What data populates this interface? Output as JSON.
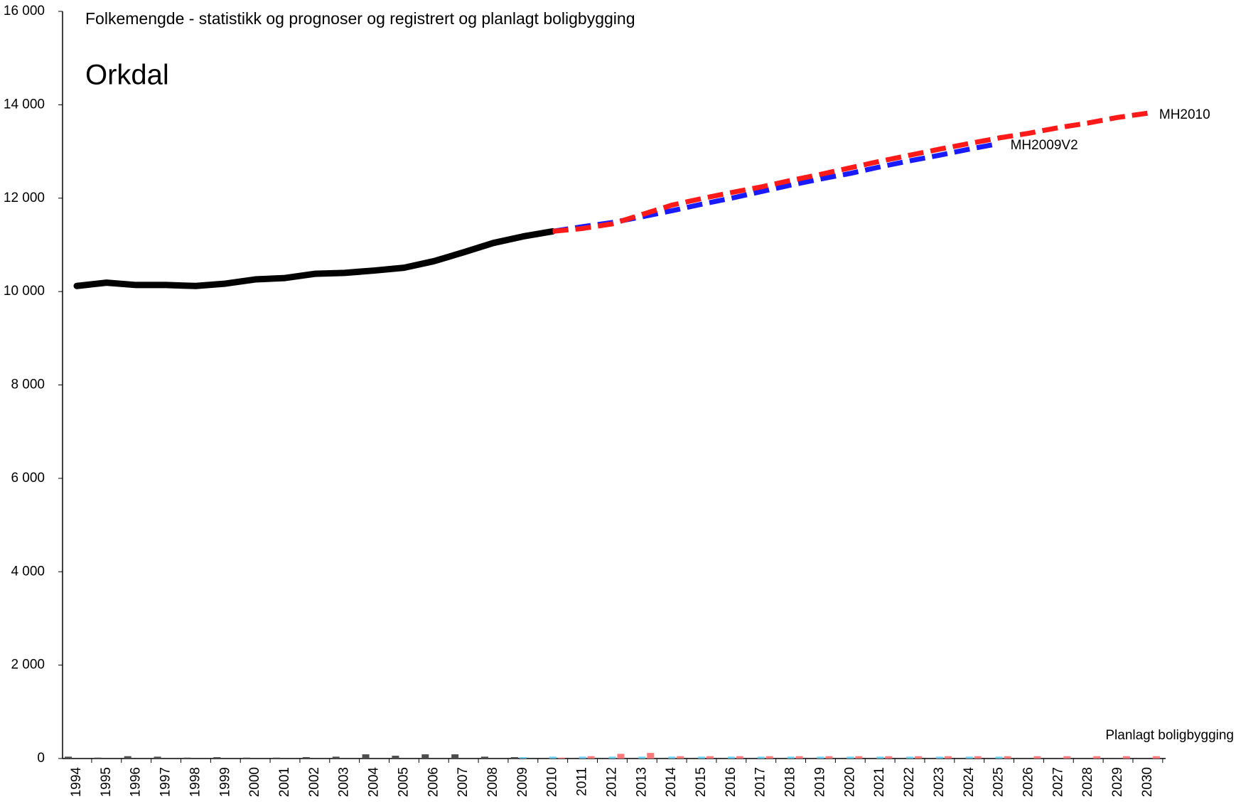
{
  "chart_data": {
    "type": "line",
    "title": "Folkemengde - statistikk og prognoser og registrert og planlagt boligbygging",
    "subtitle": "Orkdal",
    "annotation": "Planlagt boligbygging",
    "categories": [
      "1994",
      "1995",
      "1996",
      "1997",
      "1998",
      "1999",
      "2000",
      "2001",
      "2002",
      "2003",
      "2004",
      "2005",
      "2006",
      "2007",
      "2008",
      "2009",
      "2010",
      "2011",
      "2012",
      "2013",
      "2014",
      "2015",
      "2016",
      "2017",
      "2018",
      "2019",
      "2020",
      "2021",
      "2022",
      "2023",
      "2024",
      "2025",
      "2026",
      "2027",
      "2028",
      "2029",
      "2030"
    ],
    "ylim": [
      0,
      16000
    ],
    "yticks": [
      0,
      {
        "value": 2000,
        "label": "2 000"
      },
      {
        "value": 4000,
        "label": "4 000"
      },
      {
        "value": 6000,
        "label": "6 000"
      },
      {
        "value": 8000,
        "label": "8 000"
      },
      {
        "value": 10000,
        "label": "10 000"
      },
      {
        "value": 12000,
        "label": "12 000"
      },
      {
        "value": 14000,
        "label": "14 000"
      },
      {
        "value": 16000,
        "label": "16 000"
      }
    ],
    "series": [
      {
        "type": "line",
        "color": "#000000",
        "dashed": false,
        "values": [
          10120,
          10190,
          10140,
          10140,
          10120,
          10170,
          10260,
          10290,
          10380,
          10400,
          10450,
          10510,
          10650,
          10840,
          11040,
          11180,
          11290,
          null,
          null,
          null,
          null,
          null,
          null,
          null,
          null,
          null,
          null,
          null,
          null,
          null,
          null,
          null,
          null,
          null,
          null,
          null,
          null
        ]
      },
      {
        "type": "line",
        "name": "MH2009V2",
        "color": "#1a1aff",
        "dashed": true,
        "values": [
          null,
          null,
          null,
          null,
          null,
          null,
          null,
          null,
          null,
          null,
          null,
          null,
          null,
          null,
          null,
          null,
          11290,
          11390,
          11480,
          11600,
          11730,
          11870,
          12000,
          12140,
          12280,
          12410,
          12530,
          12670,
          12800,
          12920,
          13050,
          13170,
          null,
          null,
          null,
          null,
          null
        ]
      },
      {
        "type": "line",
        "name": "MH2010",
        "color": "#ff1a1a",
        "dashed": true,
        "values": [
          null,
          null,
          null,
          null,
          null,
          null,
          null,
          null,
          null,
          null,
          null,
          null,
          null,
          null,
          null,
          null,
          11290,
          11350,
          11450,
          11650,
          11850,
          11990,
          12120,
          12240,
          12380,
          12510,
          12650,
          12790,
          12920,
          13050,
          13170,
          13290,
          13390,
          13510,
          13610,
          13730,
          13820
        ]
      },
      {
        "type": "bar",
        "color": "#4d4d4d",
        "values": [
          40,
          20,
          50,
          40,
          20,
          30,
          20,
          20,
          30,
          40,
          90,
          60,
          90,
          90,
          40,
          30,
          null,
          null,
          null,
          null,
          null,
          null,
          null,
          null,
          null,
          null,
          null,
          null,
          null,
          null,
          null,
          null,
          null,
          null,
          null,
          null,
          null
        ]
      },
      {
        "type": "bar",
        "color": "#66ccee",
        "values": [
          null,
          null,
          null,
          null,
          null,
          null,
          null,
          null,
          null,
          null,
          null,
          null,
          null,
          null,
          null,
          30,
          40,
          40,
          40,
          40,
          40,
          40,
          40,
          40,
          40,
          40,
          40,
          40,
          40,
          40,
          40,
          40,
          null,
          null,
          null,
          null,
          null
        ]
      },
      {
        "type": "bar",
        "color": "#ff7777",
        "values": [
          null,
          null,
          null,
          null,
          null,
          null,
          null,
          null,
          null,
          null,
          null,
          null,
          null,
          null,
          null,
          null,
          20,
          50,
          100,
          120,
          50,
          50,
          50,
          50,
          50,
          50,
          50,
          50,
          50,
          50,
          50,
          50,
          50,
          50,
          50,
          50,
          50
        ]
      }
    ]
  }
}
